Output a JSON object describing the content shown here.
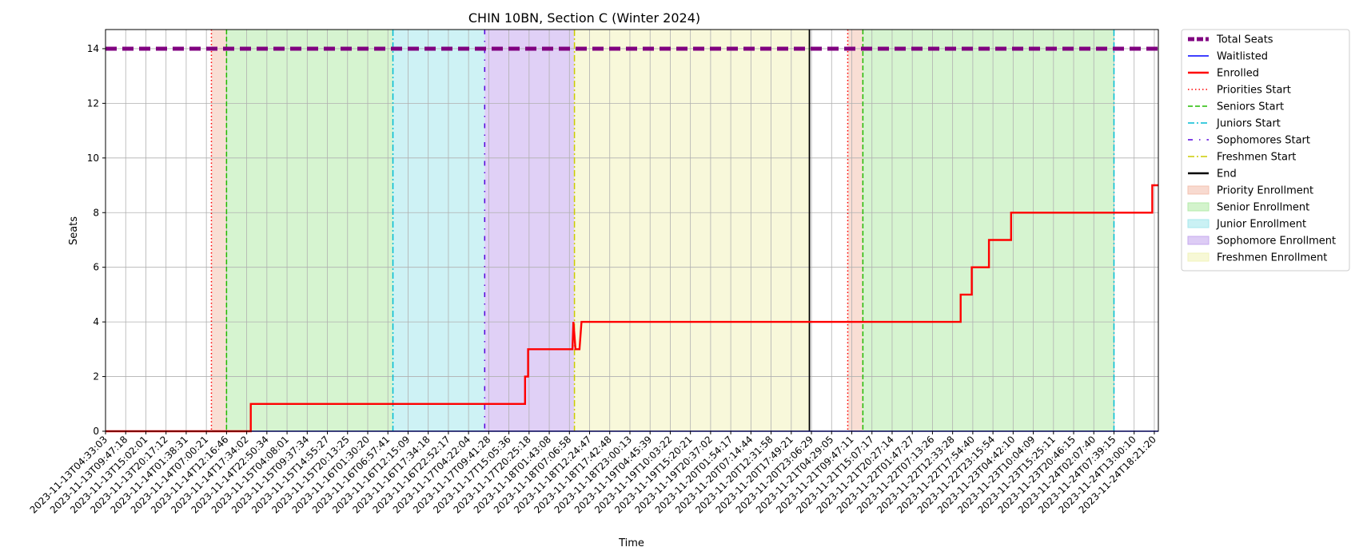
{
  "chart_data": {
    "type": "line",
    "title": "CHIN 10BN, Section C (Winter 2024)",
    "xlabel": "Time",
    "ylabel": "Seats",
    "ylim": [
      0,
      14.7
    ],
    "yticks": [
      0,
      2,
      4,
      6,
      8,
      10,
      12,
      14
    ],
    "grid": true,
    "legend_position": "outside-right",
    "x_tick_labels": [
      "2023-11-13T04:33:03",
      "2023-11-13T09:47:18",
      "2023-11-13T15:02:01",
      "2023-11-13T20:17:12",
      "2023-11-14T01:38:31",
      "2023-11-14T07:00:21",
      "2023-11-14T12:16:46",
      "2023-11-14T17:34:02",
      "2023-11-14T22:50:34",
      "2023-11-15T04:08:01",
      "2023-11-15T09:37:34",
      "2023-11-15T14:55:27",
      "2023-11-15T20:13:25",
      "2023-11-16T01:30:20",
      "2023-11-16T06:57:41",
      "2023-11-16T12:15:09",
      "2023-11-16T17:34:18",
      "2023-11-16T22:52:17",
      "2023-11-17T04:22:04",
      "2023-11-17T09:41:28",
      "2023-11-17T15:05:36",
      "2023-11-17T20:25:18",
      "2023-11-18T01:43:08",
      "2023-11-18T07:06:58",
      "2023-11-18T12:24:47",
      "2023-11-18T17:42:48",
      "2023-11-18T23:00:13",
      "2023-11-19T04:45:39",
      "2023-11-19T10:03:22",
      "2023-11-19T15:20:21",
      "2023-11-19T20:37:02",
      "2023-11-20T01:54:17",
      "2023-11-20T07:14:44",
      "2023-11-20T12:31:58",
      "2023-11-20T17:49:21",
      "2023-11-20T23:06:29",
      "2023-11-21T04:29:05",
      "2023-11-21T09:47:11",
      "2023-11-21T15:07:17",
      "2023-11-21T20:27:14",
      "2023-11-22T01:47:27",
      "2023-11-22T07:13:26",
      "2023-11-22T12:33:28",
      "2023-11-22T17:54:40",
      "2023-11-22T23:15:54",
      "2023-11-23T04:42:10",
      "2023-11-23T10:04:09",
      "2023-11-23T15:25:11",
      "2023-11-23T20:46:15",
      "2023-11-24T02:07:40",
      "2023-11-24T07:39:15",
      "2023-11-24T13:00:10",
      "2023-11-24T18:21:20"
    ],
    "x_range_index": [
      0,
      52.2
    ],
    "series": [
      {
        "name": "Total Seats",
        "color": "#800080",
        "style": "dashed-thick",
        "points": [
          [
            0,
            14
          ],
          [
            52.2,
            14
          ]
        ]
      },
      {
        "name": "Waitlisted",
        "color": "#0000ff",
        "style": "solid-thin",
        "points": [
          [
            0,
            0
          ],
          [
            52.2,
            0
          ]
        ]
      },
      {
        "name": "Enrolled",
        "color": "#ff0000",
        "style": "solid",
        "points": [
          [
            0,
            0
          ],
          [
            7.2,
            0
          ],
          [
            7.2,
            1
          ],
          [
            20.8,
            1
          ],
          [
            20.8,
            2
          ],
          [
            20.95,
            2
          ],
          [
            20.95,
            3
          ],
          [
            23.15,
            3
          ],
          [
            23.15,
            3
          ],
          [
            23.2,
            4
          ],
          [
            23.3,
            3
          ],
          [
            23.5,
            3
          ],
          [
            23.6,
            4
          ],
          [
            42.4,
            4
          ],
          [
            42.4,
            5
          ],
          [
            42.95,
            5
          ],
          [
            42.95,
            6
          ],
          [
            43.8,
            6
          ],
          [
            43.8,
            7
          ],
          [
            44.9,
            7
          ],
          [
            44.9,
            8
          ],
          [
            51.9,
            8
          ],
          [
            51.9,
            9
          ],
          [
            52.2,
            9
          ]
        ]
      }
    ],
    "vertical_lines": [
      {
        "name": "Priorities Start",
        "color": "#ff0000",
        "style": "dotted",
        "x": [
          5.25,
          36.8
        ]
      },
      {
        "name": "Seniors Start",
        "color": "#22bb00",
        "style": "dashed",
        "x": [
          6.0,
          37.55
        ]
      },
      {
        "name": "Juniors Start",
        "color": "#00bcd4",
        "style": "dashdot",
        "x": [
          14.25,
          50.0
        ]
      },
      {
        "name": "Sophomores Start",
        "color": "#5500dd",
        "style": "dashdot-sparse",
        "x": [
          18.8
        ]
      },
      {
        "name": "Freshmen Start",
        "color": "#cccc00",
        "style": "dashdot",
        "x": [
          23.25
        ]
      },
      {
        "name": "End",
        "color": "#000000",
        "style": "solid",
        "x": [
          34.9
        ]
      }
    ],
    "shaded_regions": [
      {
        "name": "Priority Enrollment",
        "color": "#f4c2b0",
        "ranges": [
          [
            5.25,
            6.0
          ],
          [
            36.8,
            37.55
          ]
        ]
      },
      {
        "name": "Senior Enrollment",
        "color": "#b5ebaa",
        "ranges": [
          [
            6.0,
            14.25
          ],
          [
            37.55,
            50.0
          ]
        ]
      },
      {
        "name": "Junior Enrollment",
        "color": "#a6e7ec",
        "ranges": [
          [
            14.25,
            18.8
          ]
        ]
      },
      {
        "name": "Sophomore Enrollment",
        "color": "#c6aaee",
        "ranges": [
          [
            18.8,
            23.25
          ]
        ]
      },
      {
        "name": "Freshmen Enrollment",
        "color": "#f2f3bb",
        "ranges": [
          [
            23.25,
            34.9
          ]
        ]
      }
    ],
    "legend": [
      {
        "label": "Total Seats",
        "kind": "line",
        "color": "#800080",
        "style": "dashed-thick"
      },
      {
        "label": "Waitlisted",
        "kind": "line",
        "color": "#0000ff",
        "style": "solid-thin"
      },
      {
        "label": "Enrolled",
        "kind": "line",
        "color": "#ff0000",
        "style": "solid"
      },
      {
        "label": "Priorities Start",
        "kind": "line",
        "color": "#ff0000",
        "style": "dotted"
      },
      {
        "label": "Seniors Start",
        "kind": "line",
        "color": "#22bb00",
        "style": "dashed"
      },
      {
        "label": "Juniors Start",
        "kind": "line",
        "color": "#00bcd4",
        "style": "dashdot"
      },
      {
        "label": "Sophomores Start",
        "kind": "line",
        "color": "#5500dd",
        "style": "dashdot-sparse"
      },
      {
        "label": "Freshmen Start",
        "kind": "line",
        "color": "#cccc00",
        "style": "dashdot"
      },
      {
        "label": "End",
        "kind": "line",
        "color": "#000000",
        "style": "solid"
      },
      {
        "label": "Priority Enrollment",
        "kind": "patch",
        "color": "#f4c2b0"
      },
      {
        "label": "Senior Enrollment",
        "kind": "patch",
        "color": "#b5ebaa"
      },
      {
        "label": "Junior Enrollment",
        "kind": "patch",
        "color": "#a6e7ec"
      },
      {
        "label": "Sophomore Enrollment",
        "kind": "patch",
        "color": "#c6aaee"
      },
      {
        "label": "Freshmen Enrollment",
        "kind": "patch",
        "color": "#f2f3bb"
      }
    ]
  }
}
